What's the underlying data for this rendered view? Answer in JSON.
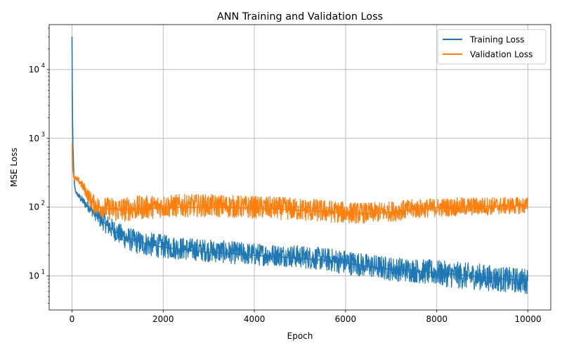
{
  "chart_data": {
    "type": "line",
    "title": "ANN Training and Validation Loss",
    "xlabel": "Epoch",
    "ylabel": "MSE Loss",
    "xscale": "linear",
    "yscale": "log",
    "xlim": [
      -500,
      10500
    ],
    "ylim": [
      3.2,
      45000
    ],
    "grid": true,
    "legend_position": "top-right",
    "x_ticks": [
      0,
      2000,
      4000,
      6000,
      8000,
      10000
    ],
    "x_tick_labels": [
      "0",
      "2000",
      "4000",
      "6000",
      "8000",
      "10000"
    ],
    "y_ticks": [
      10,
      100,
      1000,
      10000
    ],
    "y_tick_labels": [
      {
        "base": "10",
        "exp": "1"
      },
      {
        "base": "10",
        "exp": "2"
      },
      {
        "base": "10",
        "exp": "3"
      },
      {
        "base": "10",
        "exp": "4"
      }
    ],
    "x": [
      0,
      5,
      10,
      20,
      40,
      60,
      80,
      100,
      150,
      200,
      300,
      400,
      500,
      600,
      800,
      1000,
      1200,
      1500,
      2000,
      2500,
      3000,
      3500,
      4000,
      4500,
      5000,
      5500,
      6000,
      6500,
      7000,
      7500,
      8000,
      8500,
      9000,
      9500,
      10000
    ],
    "series": [
      {
        "name": "Training Loss",
        "color": "#1f77b4",
        "values": [
          30000,
          8000,
          3000,
          800,
          300,
          200,
          170,
          160,
          145,
          130,
          110,
          95,
          80,
          70,
          52,
          42,
          36,
          31,
          26,
          24,
          22,
          21,
          20,
          19,
          18,
          17,
          15.5,
          13.5,
          12.5,
          12,
          11,
          10.5,
          9.5,
          9,
          8.5
        ],
        "band_low": [
          30000,
          8000,
          3000,
          800,
          300,
          190,
          160,
          150,
          130,
          115,
          95,
          80,
          65,
          52,
          38,
          30,
          24,
          20,
          18,
          17,
          16,
          15,
          14,
          14,
          13,
          12,
          10.5,
          9.5,
          8.5,
          8,
          7.2,
          6.5,
          6.2,
          5.8,
          5.5
        ],
        "band_high": [
          30000,
          8000,
          3000,
          800,
          300,
          210,
          180,
          170,
          160,
          150,
          130,
          115,
          105,
          95,
          75,
          60,
          52,
          45,
          40,
          36,
          34,
          32,
          30,
          29,
          28,
          26,
          24,
          21,
          19,
          18,
          17,
          16,
          15,
          13.5,
          13
        ]
      },
      {
        "name": "Validation Loss",
        "color": "#ff7f0e",
        "values": [
          850,
          700,
          500,
          330,
          280,
          265,
          260,
          255,
          240,
          220,
          170,
          130,
          110,
          100,
          95,
          92,
          92,
          95,
          98,
          100,
          100,
          98,
          96,
          94,
          90,
          86,
          82,
          80,
          85,
          92,
          98,
          100,
          102,
          104,
          105
        ],
        "band_low": [
          850,
          700,
          500,
          300,
          250,
          240,
          235,
          230,
          215,
          190,
          140,
          100,
          80,
          72,
          65,
          60,
          62,
          66,
          70,
          72,
          72,
          70,
          68,
          66,
          63,
          60,
          58,
          58,
          62,
          68,
          72,
          74,
          76,
          78,
          80
        ],
        "band_high": [
          900,
          760,
          560,
          360,
          300,
          290,
          285,
          280,
          270,
          255,
          210,
          170,
          150,
          140,
          140,
          140,
          142,
          148,
          152,
          155,
          155,
          150,
          146,
          142,
          136,
          130,
          120,
          116,
          122,
          130,
          135,
          138,
          140,
          140,
          140
        ]
      }
    ]
  }
}
